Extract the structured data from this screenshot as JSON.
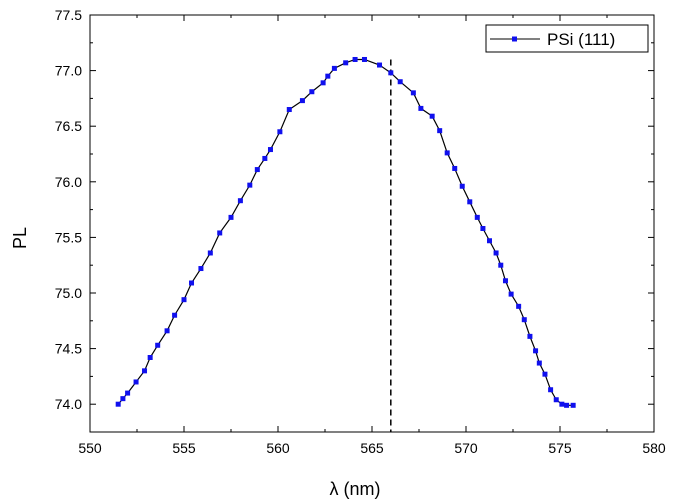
{
  "chart_data": {
    "type": "line",
    "title": "",
    "xlabel": "λ  (nm)",
    "ylabel": "PL",
    "xlim": [
      550,
      580
    ],
    "ylim": [
      73.75,
      77.5
    ],
    "x_ticks": [
      550,
      555,
      560,
      565,
      570,
      575,
      580
    ],
    "x_tick_labels": [
      "550",
      "555",
      "560",
      "565",
      "570",
      "575",
      "580"
    ],
    "y_ticks": [
      74.0,
      74.5,
      75.0,
      75.5,
      76.0,
      76.5,
      77.0,
      77.5
    ],
    "y_tick_labels": [
      "74.0",
      "74.5",
      "75.0",
      "75.5",
      "76.0",
      "76.5",
      "77.0",
      "77.5"
    ],
    "grid": false,
    "legend_position": "top-right",
    "marker_color": "#1010ee",
    "line_color": "#000000",
    "reference_line": {
      "x": 566.0,
      "style": "dashed",
      "color": "#000000"
    },
    "series": [
      {
        "name": "PSi (111)",
        "x": [
          551.5,
          551.75,
          552.0,
          552.45,
          552.9,
          553.2,
          553.6,
          554.1,
          554.5,
          555.0,
          555.4,
          555.9,
          556.4,
          556.9,
          557.5,
          558.0,
          558.5,
          558.9,
          559.3,
          559.6,
          560.1,
          560.6,
          561.3,
          561.8,
          562.4,
          562.65,
          563.0,
          563.6,
          564.1,
          564.6,
          565.4,
          566.0,
          566.5,
          567.2,
          567.6,
          568.2,
          568.6,
          569.0,
          569.4,
          569.8,
          570.2,
          570.6,
          570.9,
          571.25,
          571.6,
          571.85,
          572.1,
          572.4,
          572.8,
          573.1,
          573.4,
          573.7,
          573.9,
          574.2,
          574.5,
          574.8,
          575.1,
          575.35,
          575.7
        ],
        "y": [
          74.0,
          74.05,
          74.1,
          74.2,
          74.3,
          74.42,
          74.53,
          74.66,
          74.8,
          74.94,
          75.09,
          75.22,
          75.36,
          75.54,
          75.68,
          75.83,
          75.97,
          76.11,
          76.21,
          76.29,
          76.45,
          76.65,
          76.73,
          76.81,
          76.89,
          76.95,
          77.02,
          77.07,
          77.1,
          77.1,
          77.05,
          76.98,
          76.9,
          76.8,
          76.66,
          76.59,
          76.46,
          76.26,
          76.12,
          75.96,
          75.82,
          75.68,
          75.58,
          75.47,
          75.36,
          75.25,
          75.11,
          74.99,
          74.88,
          74.76,
          74.61,
          74.48,
          74.37,
          74.27,
          74.13,
          74.04,
          74.0,
          73.99,
          73.99
        ]
      }
    ]
  }
}
